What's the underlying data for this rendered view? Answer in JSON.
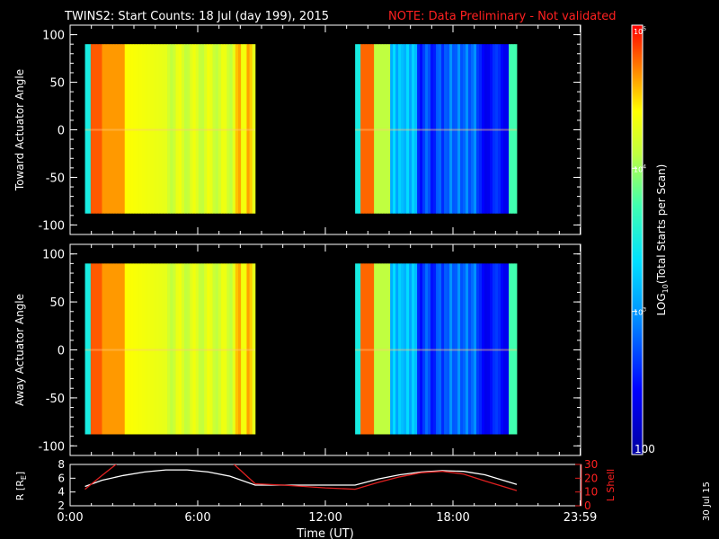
{
  "header": {
    "title": "TWINS2: Start Counts: 18 Jul (day 199), 2015",
    "note": "NOTE: Data Preliminary - Not validated"
  },
  "stamp": "30 Jul 15",
  "colors": {
    "background": "#000000",
    "axis": "#ffffff",
    "note": "#ff2020",
    "r_line": "#ffffff",
    "lshell_line": "#e02020"
  },
  "chart_data": [
    {
      "type": "heatmap",
      "name": "toward",
      "ylabel": "Toward Actuator Angle",
      "ylim": [
        -110,
        110
      ],
      "yticks": [
        100,
        50,
        0,
        -50,
        -100
      ],
      "x_range_hours": [
        0,
        24
      ],
      "data_blocks_hours": [
        [
          0.7,
          8.7
        ],
        [
          13.4,
          21.0
        ]
      ],
      "angle_range": [
        -88,
        90
      ],
      "description_levels": "log10 start counts per scan"
    },
    {
      "type": "heatmap",
      "name": "away",
      "ylabel": "Away Actuator Angle",
      "ylim": [
        -110,
        110
      ],
      "yticks": [
        100,
        50,
        0,
        -50,
        -100
      ],
      "x_range_hours": [
        0,
        24
      ],
      "data_blocks_hours": [
        [
          0.7,
          8.7
        ],
        [
          13.4,
          21.0
        ]
      ],
      "angle_range": [
        -88,
        90
      ]
    },
    {
      "type": "line",
      "name": "orbit",
      "xlabel": "Time (UT)",
      "xticks": [
        "0:00",
        "6:00",
        "12:00",
        "18:00",
        "23:59"
      ],
      "xtick_hours": [
        0,
        6,
        12,
        18,
        23.98
      ],
      "left_axis": {
        "label": "R [R",
        "label_sub": "E",
        "label_end": "]",
        "ylim": [
          2,
          8
        ],
        "ticks": [
          8,
          6,
          4,
          2
        ]
      },
      "right_axis": {
        "label": "L Shell",
        "ylim": [
          0,
          30
        ],
        "ticks": [
          30,
          20,
          10,
          0
        ]
      },
      "series": [
        {
          "name": "R",
          "axis": "left",
          "color": "#ffffff",
          "x": [
            0.7,
            1.5,
            2.5,
            3.5,
            4.5,
            5.5,
            6.5,
            7.5,
            8.7,
            10,
            11,
            12,
            13.4,
            14.5,
            15.5,
            16.5,
            17.5,
            18.5,
            19.5,
            21.0
          ],
          "y": [
            4.8,
            5.7,
            6.4,
            6.9,
            7.2,
            7.2,
            6.9,
            6.3,
            5.0,
            5.0,
            5.0,
            5.0,
            5.0,
            5.9,
            6.5,
            6.9,
            7.1,
            7.0,
            6.5,
            5.1
          ]
        },
        {
          "name": "L Shell",
          "axis": "right",
          "color": "#e02020",
          "x": [
            0.7,
            1.5,
            2.4,
            7.5,
            8.7,
            10,
            11,
            12,
            13.4,
            14.5,
            15.5,
            16.5,
            17.5,
            18.5,
            19.5,
            21.0
          ],
          "y": [
            12,
            22,
            33,
            33,
            16,
            15,
            14,
            13,
            12,
            17,
            21,
            24,
            25,
            23,
            18,
            11
          ]
        }
      ]
    },
    {
      "type": "heatmap",
      "name": "colorbar",
      "label_prefix": "LOG",
      "label_sub": "10",
      "label_suffix": "(Total Starts per Scan)",
      "range": [
        100,
        100000
      ],
      "tick_labels": [
        {
          "base": "10",
          "exp": "5",
          "value": 100000
        },
        {
          "base": "10",
          "exp": "4",
          "value": 10000
        },
        {
          "base": "10",
          "exp": "3",
          "value": 1000
        },
        {
          "base": "100",
          "exp": "",
          "value": 100
        }
      ]
    }
  ]
}
